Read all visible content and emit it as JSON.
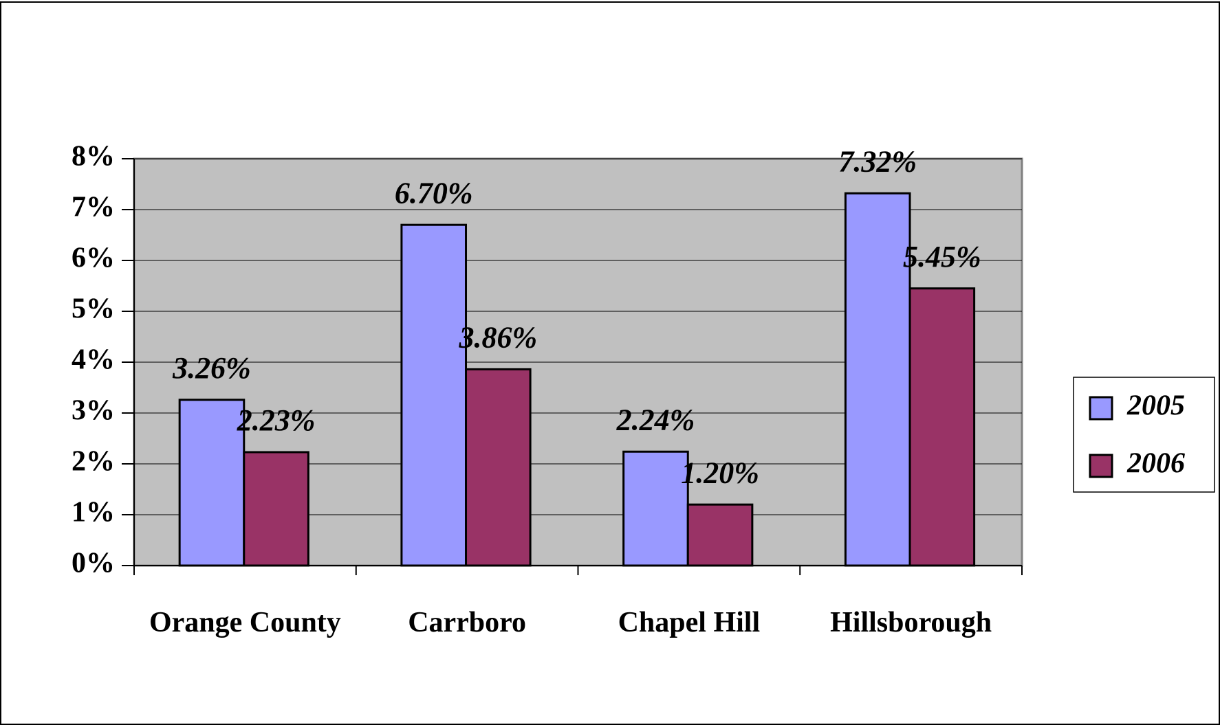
{
  "chart_data": {
    "type": "bar",
    "categories": [
      "Orange County",
      "Carrboro",
      "Chapel Hill",
      "Hillsborough"
    ],
    "series": [
      {
        "name": "2005",
        "color": "#9999ff",
        "values": [
          3.26,
          6.7,
          2.24,
          7.32
        ],
        "value_labels": [
          "3.26%",
          "6.70%",
          "2.24%",
          "7.32%"
        ]
      },
      {
        "name": "2006",
        "color": "#993366",
        "values": [
          2.23,
          3.86,
          1.2,
          5.45
        ],
        "value_labels": [
          "2.23%",
          "3.86%",
          "1.20%",
          "5.45%"
        ]
      }
    ],
    "ylim": [
      0,
      8
    ],
    "yticks": [
      {
        "value": 0,
        "label": "0%"
      },
      {
        "value": 1,
        "label": "1%"
      },
      {
        "value": 2,
        "label": "2%"
      },
      {
        "value": 3,
        "label": "3%"
      },
      {
        "value": 4,
        "label": "4%"
      },
      {
        "value": 5,
        "label": "5%"
      },
      {
        "value": 6,
        "label": "6%"
      },
      {
        "value": 7,
        "label": "7%"
      },
      {
        "value": 8,
        "label": "8%"
      }
    ],
    "grid": true,
    "legend": "right"
  }
}
